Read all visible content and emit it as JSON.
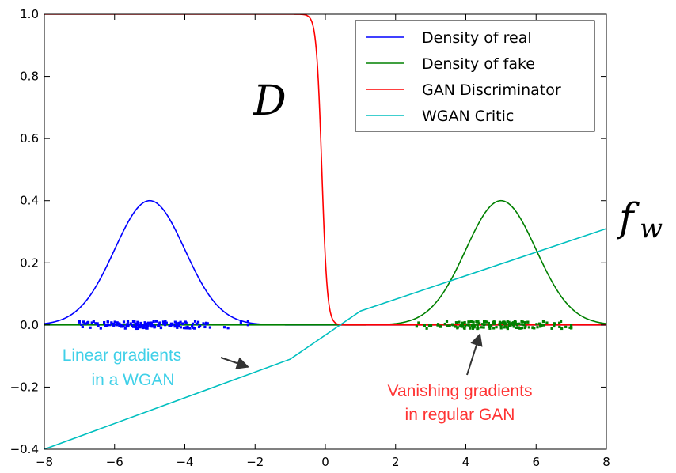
{
  "chart_data": {
    "type": "line",
    "title": "",
    "xlabel": "",
    "ylabel": "",
    "xlim": [
      -8,
      8
    ],
    "ylim": [
      -0.4,
      1.0
    ],
    "x_ticks": [
      -8,
      -6,
      -4,
      -2,
      0,
      2,
      4,
      6,
      8
    ],
    "x_tick_labels": [
      "−8",
      "−6",
      "−4",
      "−2",
      "0",
      "2",
      "4",
      "6",
      "8"
    ],
    "y_ticks": [
      -0.4,
      -0.2,
      0.0,
      0.2,
      0.4,
      0.6,
      0.8,
      1.0
    ],
    "y_tick_labels": [
      "−0.4",
      "−0.2",
      "0.0",
      "0.2",
      "0.4",
      "0.6",
      "0.8",
      "1.0"
    ],
    "grid": false,
    "legend_position": "top-right",
    "series": [
      {
        "name": "Density of real",
        "color": "#0000ff",
        "kind": "gaussian",
        "mean": -5,
        "std": 1,
        "peak": 0.4
      },
      {
        "name": "Density of fake",
        "color": "#008000",
        "kind": "gaussian",
        "mean": 5,
        "std": 1,
        "peak": 0.4
      },
      {
        "name": "GAN Discriminator",
        "color": "#ff0000",
        "kind": "sigmoid",
        "center": -0.1,
        "steepness": -13
      },
      {
        "name": "WGAN Critic",
        "color": "#00bfbf",
        "kind": "polyline",
        "x": [
          -8,
          -1,
          1,
          8
        ],
        "y": [
          -0.4,
          -0.11,
          0.045,
          0.31
        ]
      }
    ],
    "scatter": [
      {
        "name": "real samples",
        "color": "#0000ff",
        "x_range": [
          -7,
          -2.2
        ],
        "center": -5,
        "spread": 1.1,
        "count": 160,
        "y_jitter": 0.012
      },
      {
        "name": "fake samples",
        "color": "#008000",
        "x_range": [
          2.6,
          7
        ],
        "center": 5,
        "spread": 1.0,
        "count": 160,
        "y_jitter": 0.012
      }
    ],
    "annotations": [
      {
        "id": "linear",
        "lines": [
          "Linear gradients",
          "in a WGAN"
        ],
        "color": "#3fd0e8",
        "arrow_to": [
          -2.2,
          -0.135
        ]
      },
      {
        "id": "vanishing",
        "lines": [
          "Vanishing gradients",
          "in regular GAN"
        ],
        "color": "#ff3333",
        "arrow_to": [
          4.4,
          -0.03
        ]
      }
    ],
    "math_labels": [
      {
        "id": "D",
        "text": "D"
      },
      {
        "id": "fw",
        "text": "f",
        "sub": "w"
      }
    ]
  }
}
